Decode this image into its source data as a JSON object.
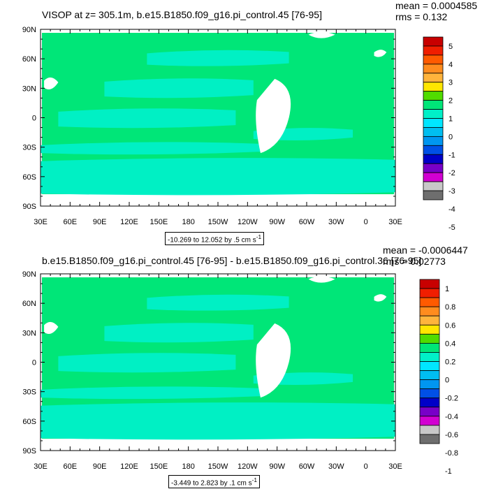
{
  "chart_data": [
    {
      "type": "heatmap",
      "title": "VISOP at z= 305.1m, b.e15.B1850.f09_g16.pi_control.45 [76-95]",
      "stats": {
        "mean": "mean = 0.0004585",
        "rms": "rms = 0.132"
      },
      "ylabels": [
        "90N",
        "60N",
        "30N",
        "0",
        "30S",
        "60S",
        "90S"
      ],
      "xlabels": [
        "30E",
        "60E",
        "90E",
        "120E",
        "150E",
        "180",
        "150W",
        "120W",
        "90W",
        "60W",
        "30W",
        "0",
        "30E"
      ],
      "range_text": "-10.269 to 12.052 by .5 cm s",
      "range_sup": "-1",
      "colorbar_labels": [
        "5",
        "4",
        "3",
        "2",
        "1",
        "0",
        "-1",
        "-2",
        "-3",
        "-4",
        "-5"
      ],
      "colorbar_colors": [
        "#c80000",
        "#f01e00",
        "#ff5a00",
        "#ff8c1e",
        "#ffb43c",
        "#ffe600",
        "#50dc00",
        "#00e678",
        "#00f0c8",
        "#00e6ff",
        "#00bef0",
        "#0096f0",
        "#0050e6",
        "#0000c8",
        "#7800c8",
        "#d200d2",
        "#c8c8c8",
        "#6e6e6e"
      ],
      "field_colors": {
        "main": "#00e678",
        "neg": "#00f0c8"
      }
    },
    {
      "type": "heatmap",
      "title": "b.e15.B1850.f09_g16.pi_control.45 [76-95] - b.e15.B1850.f09_g16.pi_control.36 [76-95]",
      "stats": {
        "mean": "mean = -0.0006447",
        "rms": "rms = 0.02773"
      },
      "ylabels": [
        "90N",
        "60N",
        "30N",
        "0",
        "30S",
        "60S",
        "90S"
      ],
      "xlabels": [
        "30E",
        "60E",
        "90E",
        "120E",
        "150E",
        "180",
        "150W",
        "120W",
        "90W",
        "60W",
        "30W",
        "0",
        "30E"
      ],
      "range_text": "-3.449 to 2.823 by .1 cm s",
      "range_sup": "-1",
      "colorbar_labels": [
        "1",
        "0.8",
        "0.6",
        "0.4",
        "0.2",
        "0",
        "-0.2",
        "-0.4",
        "-0.6",
        "-0.8",
        "-1"
      ],
      "colorbar_colors": [
        "#c80000",
        "#f01e00",
        "#ff5a00",
        "#ff8c1e",
        "#ffb43c",
        "#ffe600",
        "#50dc00",
        "#00e678",
        "#00f0c8",
        "#00e6ff",
        "#00bef0",
        "#0096f0",
        "#0050e6",
        "#0000c8",
        "#7800c8",
        "#d200d2",
        "#c8c8c8",
        "#6e6e6e"
      ],
      "field_colors": {
        "main": "#00e678",
        "neg": "#00f0c8"
      }
    }
  ]
}
